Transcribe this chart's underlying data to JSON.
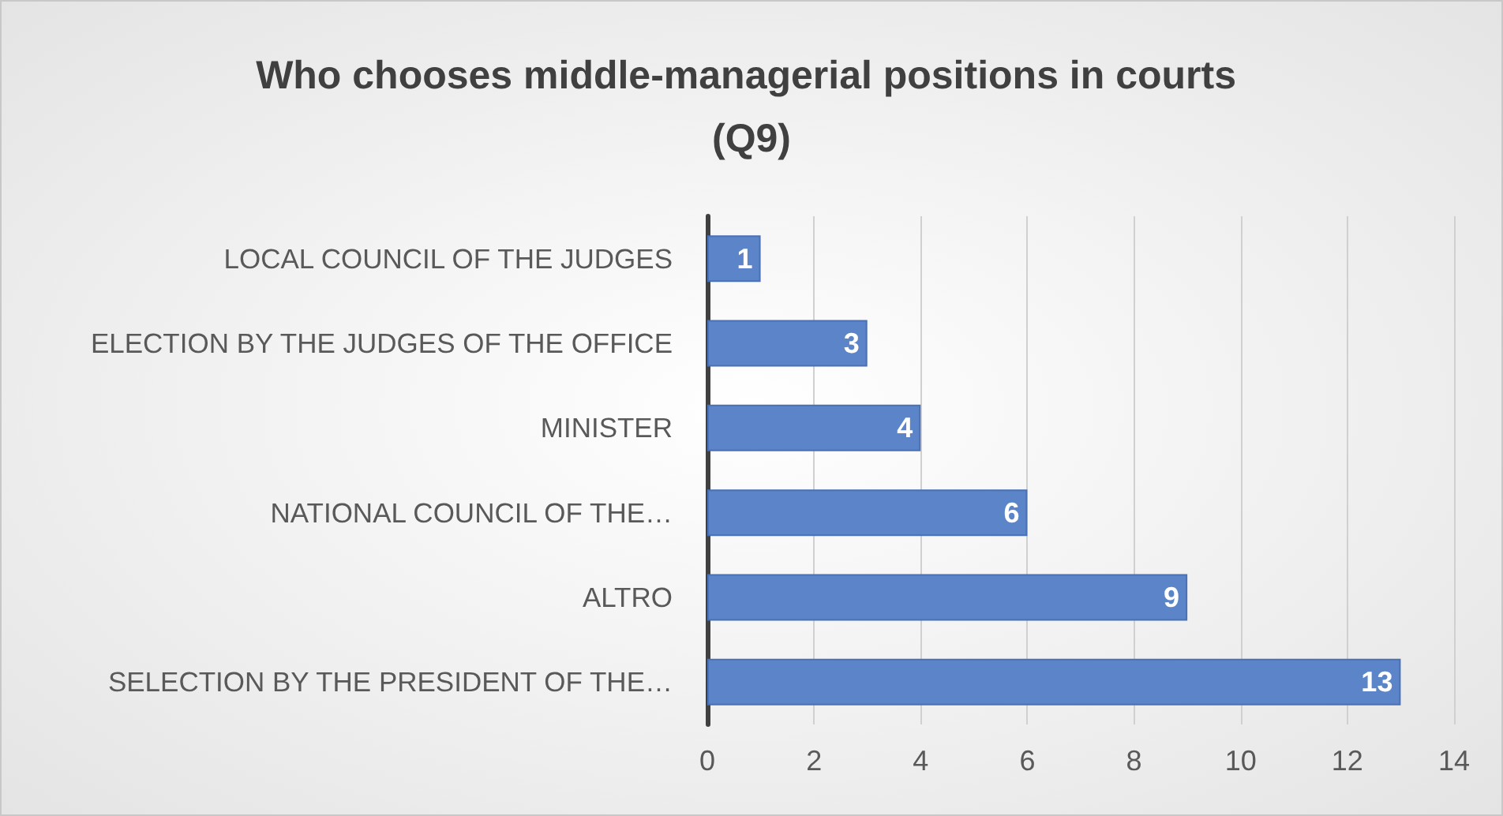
{
  "chart_data": {
    "type": "bar",
    "orientation": "horizontal",
    "title": "Who chooses middle-managerial positions in courts (Q9)",
    "categories": [
      "LOCAL COUNCIL OF THE JUDGES",
      "ELECTION BY THE JUDGES OF THE OFFICE",
      "MINISTER",
      "NATIONAL COUNCIL OF THE…",
      "ALTRO",
      "SELECTION BY THE PRESIDENT OF THE…"
    ],
    "values": [
      1,
      3,
      4,
      6,
      9,
      13
    ],
    "color": "#5b84c9",
    "xlim": [
      0,
      14
    ],
    "xticks": [
      0,
      2,
      4,
      6,
      8,
      10,
      12,
      14
    ],
    "grid": "x",
    "data_labels": true
  }
}
